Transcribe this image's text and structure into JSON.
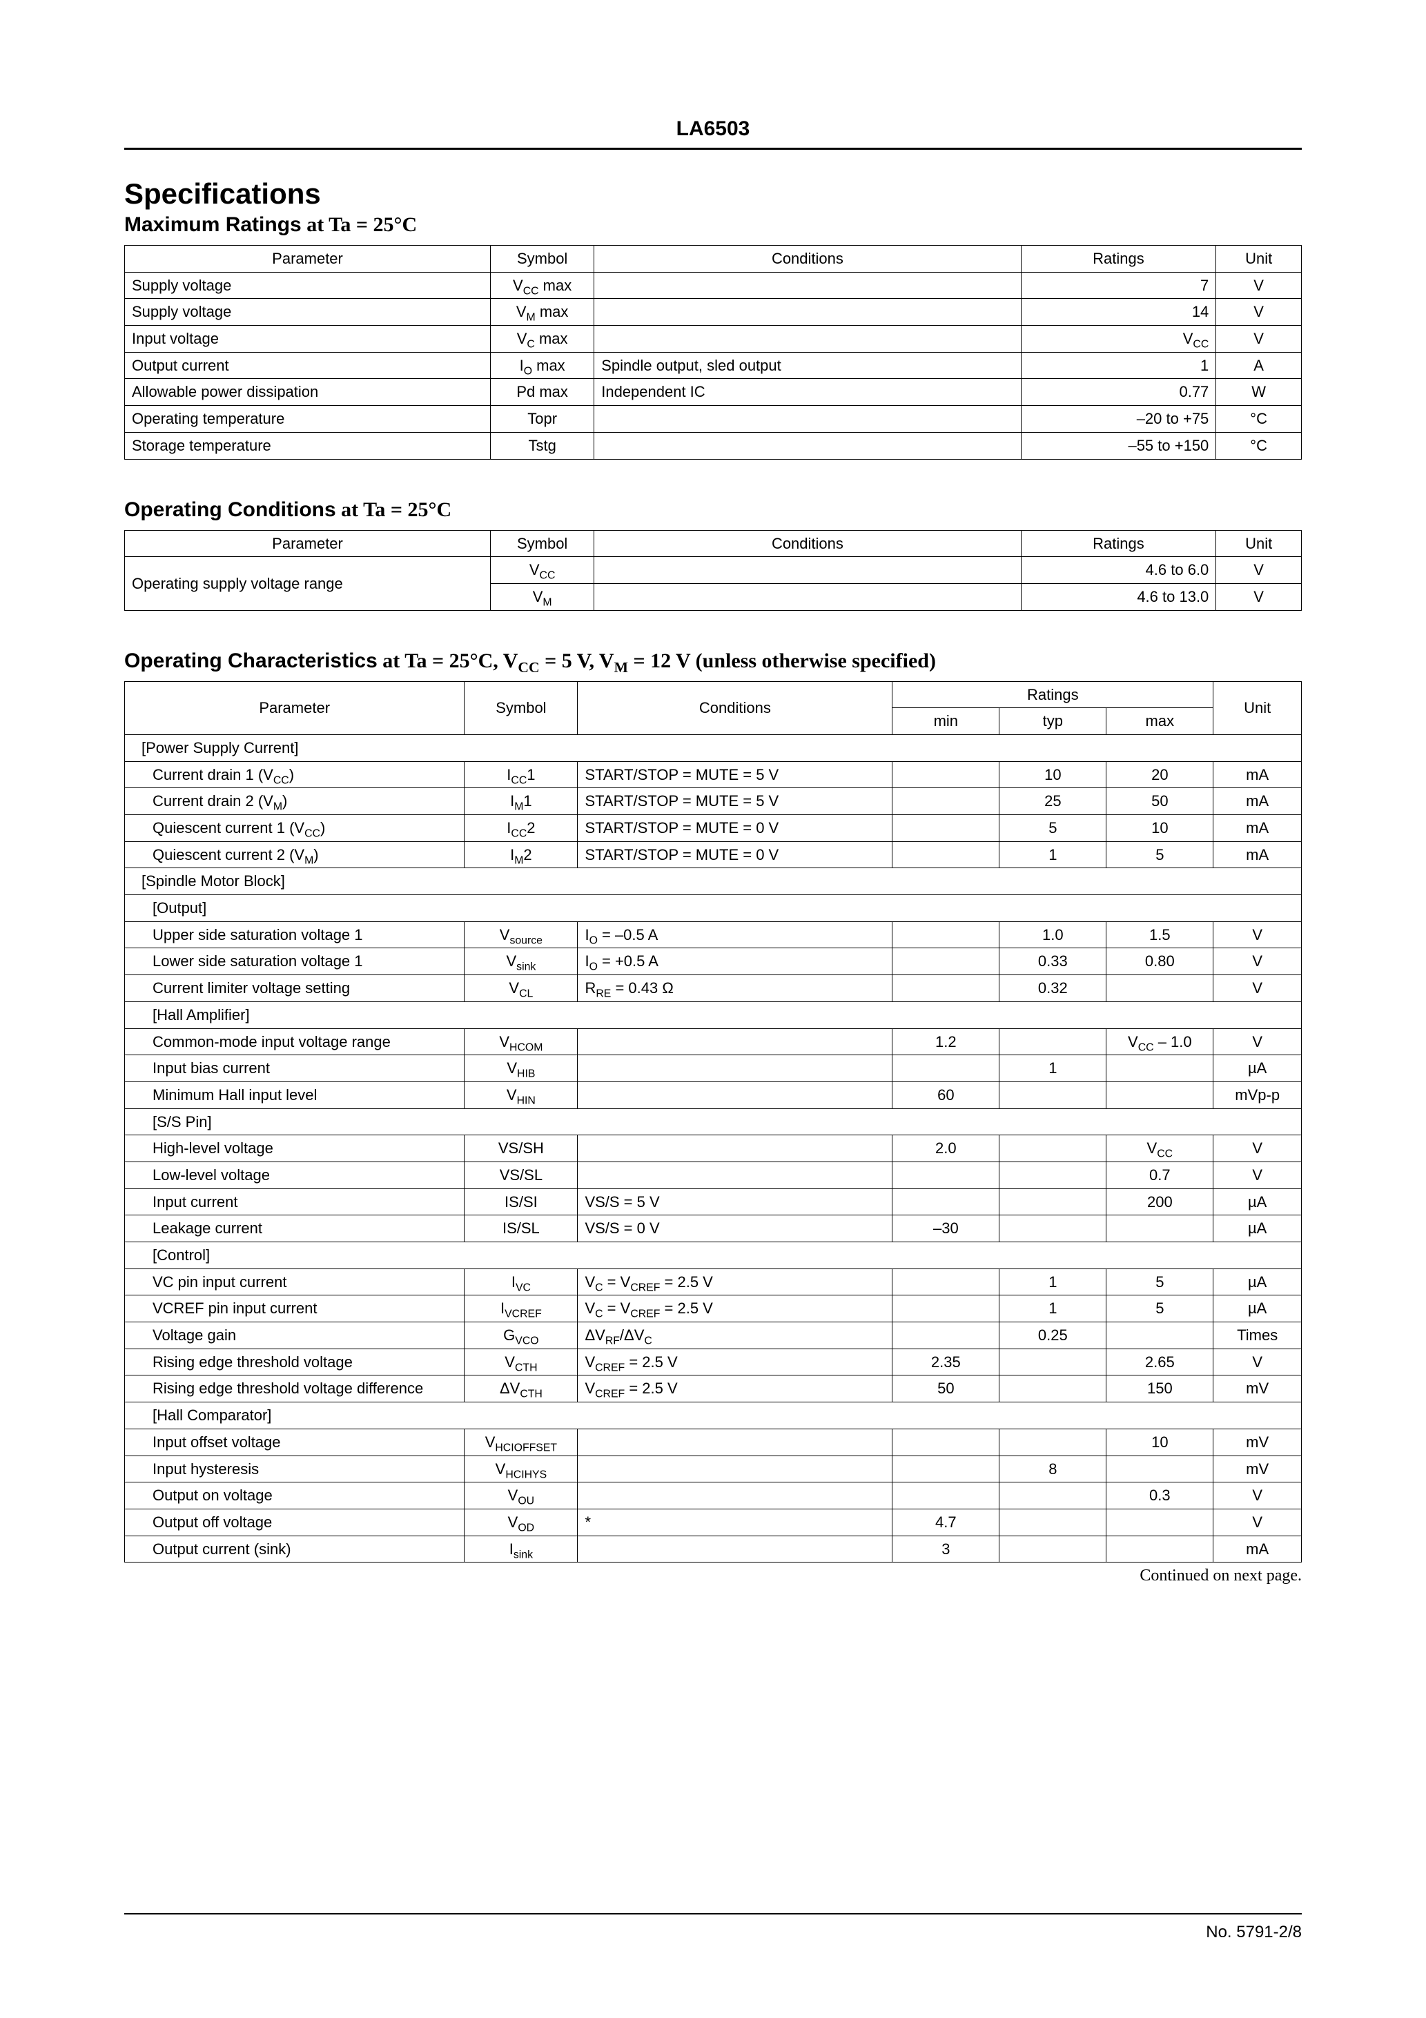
{
  "doc": {
    "part_number": "LA6503",
    "title": "Specifications",
    "footer": "No. 5791-2/8",
    "continued": "Continued on next page."
  },
  "sec1": {
    "heading": "Maximum Ratings",
    "cond_prefix": " at ",
    "cond": "Ta = 25°C",
    "headers": {
      "param": "Parameter",
      "symbol": "Symbol",
      "cond": "Conditions",
      "ratings": "Ratings",
      "unit": "Unit"
    },
    "rows": [
      {
        "param": "Supply voltage",
        "symbol": "V<sub>CC</sub> max",
        "cond": "",
        "ratings": "7",
        "unit": "V"
      },
      {
        "param": "Supply voltage",
        "symbol": "V<sub>M</sub> max",
        "cond": "",
        "ratings": "14",
        "unit": "V"
      },
      {
        "param": "Input voltage",
        "symbol": "V<sub>C</sub> max",
        "cond": "",
        "ratings": "V<sub>CC</sub>",
        "unit": "V"
      },
      {
        "param": "Output current",
        "symbol": "I<sub>O</sub> max",
        "cond": "Spindle output, sled output",
        "ratings": "1",
        "unit": "A"
      },
      {
        "param": "Allowable power dissipation",
        "symbol": "Pd max",
        "cond": "Independent IC",
        "ratings": "0.77",
        "unit": "W"
      },
      {
        "param": "Operating temperature",
        "symbol": "Topr",
        "cond": "",
        "ratings": "–20 to +75",
        "unit": "°C"
      },
      {
        "param": "Storage temperature",
        "symbol": "Tstg",
        "cond": "",
        "ratings": "–55 to +150",
        "unit": "°C"
      }
    ]
  },
  "sec2": {
    "heading": "Operating Conditions",
    "cond_prefix": " at ",
    "cond": "Ta = 25°C",
    "headers": {
      "param": "Parameter",
      "symbol": "Symbol",
      "cond": "Conditions",
      "ratings": "Ratings",
      "unit": "Unit"
    },
    "rows": [
      {
        "param": "Operating supply voltage range",
        "symbol": "V<sub>CC</sub>",
        "cond": "",
        "ratings": "4.6 to 6.0",
        "unit": "V",
        "rowspan": 2
      },
      {
        "symbol": "V<sub>M</sub>",
        "cond": "",
        "ratings": "4.6 to 13.0",
        "unit": "V"
      }
    ]
  },
  "sec3": {
    "heading": "Operating Characteristics",
    "cond_prefix": " at ",
    "cond": "Ta = 25°C, V<sub>CC</sub> = 5 V, V<sub>M</sub> = 12 V (unless otherwise specified)",
    "headers": {
      "param": "Parameter",
      "symbol": "Symbol",
      "cond": "Conditions",
      "ratings": "Ratings",
      "min": "min",
      "typ": "typ",
      "max": "max",
      "unit": "Unit"
    },
    "rows": [
      {
        "section": "[Power Supply Current]",
        "indent": 1
      },
      {
        "param": "Current drain 1 (V<sub>CC</sub>)",
        "indent": 2,
        "symbol": "I<sub>CC</sub>1",
        "cond": "START/STOP = MUTE = 5 V",
        "min": "",
        "typ": "10",
        "max": "20",
        "unit": "mA"
      },
      {
        "param": "Current drain 2 (V<sub>M</sub>)",
        "indent": 2,
        "symbol": "I<sub>M</sub>1",
        "cond": "START/STOP = MUTE = 5 V",
        "min": "",
        "typ": "25",
        "max": "50",
        "unit": "mA"
      },
      {
        "param": "Quiescent current 1 (V<sub>CC</sub>)",
        "indent": 2,
        "symbol": "I<sub>CC</sub>2",
        "cond": "START/STOP = MUTE = 0 V",
        "min": "",
        "typ": "5",
        "max": "10",
        "unit": "mA"
      },
      {
        "param": "Quiescent current 2 (V<sub>M</sub>)",
        "indent": 2,
        "symbol": "I<sub>M</sub>2",
        "cond": "START/STOP = MUTE = 0 V",
        "min": "",
        "typ": "1",
        "max": "5",
        "unit": "mA"
      },
      {
        "section": "[Spindle Motor Block]",
        "indent": 1
      },
      {
        "section": "[Output]",
        "indent": 2
      },
      {
        "param": "Upper side saturation voltage 1",
        "indent": 2,
        "symbol": "V<sub>source</sub>",
        "cond": "I<sub>O</sub> = –0.5 A",
        "min": "",
        "typ": "1.0",
        "max": "1.5",
        "unit": "V"
      },
      {
        "param": "Lower side saturation voltage 1",
        "indent": 2,
        "symbol": "V<sub>sink</sub>",
        "cond": "I<sub>O</sub> = +0.5 A",
        "min": "",
        "typ": "0.33",
        "max": "0.80",
        "unit": "V"
      },
      {
        "param": "Current limiter voltage setting",
        "indent": 2,
        "symbol": "V<sub>CL</sub>",
        "cond": "R<sub>RE</sub> = 0.43 Ω",
        "min": "",
        "typ": "0.32",
        "max": "",
        "unit": "V"
      },
      {
        "section": "[Hall Amplifier]",
        "indent": 2
      },
      {
        "param": "Common-mode input voltage range",
        "indent": 2,
        "symbol": "V<sub>HCOM</sub>",
        "cond": "",
        "min": "1.2",
        "typ": "",
        "max": "V<sub>CC</sub> – 1.0",
        "unit": "V"
      },
      {
        "param": "Input bias current",
        "indent": 2,
        "symbol": "V<sub>HIB</sub>",
        "cond": "",
        "min": "",
        "typ": "1",
        "max": "",
        "unit": "µA"
      },
      {
        "param": "Minimum Hall input level",
        "indent": 2,
        "symbol": "V<sub>HIN</sub>",
        "cond": "",
        "min": "60",
        "typ": "",
        "max": "",
        "unit": "mVp-p"
      },
      {
        "section": "[S/S Pin]",
        "indent": 2
      },
      {
        "param": "High-level voltage",
        "indent": 2,
        "symbol": "VS/SH",
        "cond": "",
        "min": "2.0",
        "typ": "",
        "max": "V<sub>CC</sub>",
        "unit": "V"
      },
      {
        "param": "Low-level voltage",
        "indent": 2,
        "symbol": "VS/SL",
        "cond": "",
        "min": "",
        "typ": "",
        "max": "0.7",
        "unit": "V"
      },
      {
        "param": "Input current",
        "indent": 2,
        "symbol": "IS/SI",
        "cond": "VS/S = 5 V",
        "min": "",
        "typ": "",
        "max": "200",
        "unit": "µA"
      },
      {
        "param": "Leakage current",
        "indent": 2,
        "symbol": "IS/SL",
        "cond": "VS/S = 0 V",
        "min": "–30",
        "typ": "",
        "max": "",
        "unit": "µA"
      },
      {
        "section": "[Control]",
        "indent": 2
      },
      {
        "param": "VC pin input current",
        "indent": 2,
        "symbol": "I<sub>VC</sub>",
        "cond": "V<sub>C</sub> = V<sub>CREF</sub> = 2.5 V",
        "min": "",
        "typ": "1",
        "max": "5",
        "unit": "µA"
      },
      {
        "param": "VCREF pin input current",
        "indent": 2,
        "symbol": "I<sub>VCREF</sub>",
        "cond": "V<sub>C</sub> = V<sub>CREF</sub> = 2.5 V",
        "min": "",
        "typ": "1",
        "max": "5",
        "unit": "µA"
      },
      {
        "param": "Voltage gain",
        "indent": 2,
        "symbol": "G<sub>VCO</sub>",
        "cond": "ΔV<sub>RF</sub>/ΔV<sub>C</sub>",
        "min": "",
        "typ": "0.25",
        "max": "",
        "unit": "Times"
      },
      {
        "param": "Rising edge threshold voltage",
        "indent": 2,
        "symbol": "V<sub>CTH</sub>",
        "cond": "V<sub>CREF</sub> = 2.5 V",
        "min": "2.35",
        "typ": "",
        "max": "2.65",
        "unit": "V"
      },
      {
        "param": "Rising edge threshold voltage difference",
        "indent": 2,
        "symbol": "ΔV<sub>CTH</sub>",
        "cond": "V<sub>CREF</sub> = 2.5 V",
        "min": "50",
        "typ": "",
        "max": "150",
        "unit": "mV"
      },
      {
        "section": "[Hall Comparator]",
        "indent": 2
      },
      {
        "param": "Input offset voltage",
        "indent": 2,
        "symbol": "V<sub>HCIOFFSET</sub>",
        "cond": "",
        "min": "",
        "typ": "",
        "max": "10",
        "unit": "mV"
      },
      {
        "param": "Input hysteresis",
        "indent": 2,
        "symbol": "V<sub>HCIHYS</sub>",
        "cond": "",
        "min": "",
        "typ": "8",
        "max": "",
        "unit": "mV"
      },
      {
        "param": "Output on voltage",
        "indent": 2,
        "symbol": "V<sub>OU</sub>",
        "cond": "",
        "min": "",
        "typ": "",
        "max": "0.3",
        "unit": "V"
      },
      {
        "param": "Output off voltage",
        "indent": 2,
        "symbol": "V<sub>OD</sub>",
        "cond": "*",
        "min": "4.7",
        "typ": "",
        "max": "",
        "unit": "V"
      },
      {
        "param": "Output current (sink)",
        "indent": 2,
        "symbol": "I<sub>sink</sub>",
        "cond": "",
        "min": "3",
        "typ": "",
        "max": "",
        "unit": "mA"
      }
    ]
  },
  "layout": {
    "col_widths_5": {
      "param": "30%",
      "symbol": "8.5%",
      "cond": "35%",
      "ratings": "16%",
      "unit": "7%"
    },
    "col_widths_7": {
      "param": "27%",
      "symbol": "9%",
      "cond": "25%",
      "num": "8.5%",
      "unit": "7%"
    }
  }
}
